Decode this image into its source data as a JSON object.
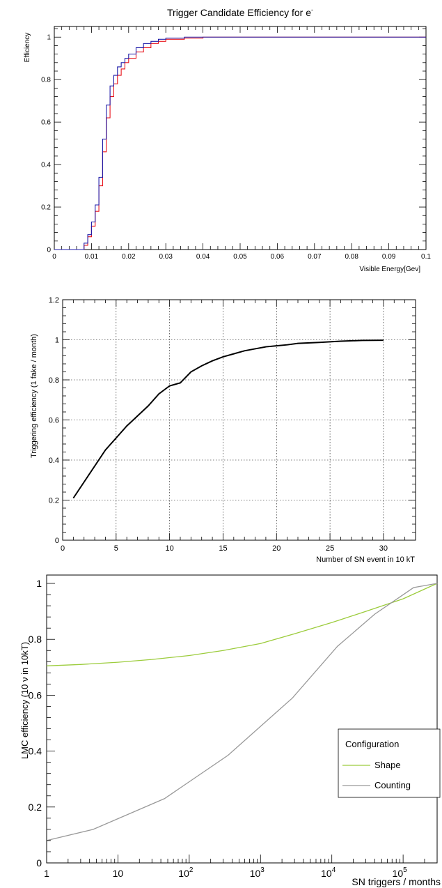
{
  "chart_data": [
    {
      "type": "line",
      "title": "Trigger Candidate Efficiency for e",
      "title_superscript": "-",
      "xlabel": "Visible Energy[Gev]",
      "ylabel": "Efficiency",
      "xlim": [
        0,
        0.1
      ],
      "ylim": [
        0,
        1.05
      ],
      "x_ticks": [
        0,
        0.01,
        0.02,
        0.03,
        0.04,
        0.05,
        0.06,
        0.07,
        0.08,
        0.09,
        0.1
      ],
      "x_tick_labels": [
        "0",
        "0.01",
        "0.02",
        "0.03",
        "0.04",
        "0.05",
        "0.06",
        "0.07",
        "0.08",
        "0.09",
        "0.1"
      ],
      "y_ticks": [
        0,
        0.2,
        0.4,
        0.6,
        0.8,
        1
      ],
      "y_tick_labels": [
        "0",
        "0.2",
        "0.4",
        "0.6",
        "0.8",
        "1"
      ],
      "grid": false,
      "step_histogram": true,
      "x": [
        0.007,
        0.008,
        0.009,
        0.01,
        0.011,
        0.012,
        0.013,
        0.014,
        0.015,
        0.016,
        0.017,
        0.018,
        0.019,
        0.02,
        0.022,
        0.024,
        0.026,
        0.028,
        0.03,
        0.035,
        0.04,
        0.05,
        0.1
      ],
      "series": [
        {
          "color": "#e8141c",
          "values": [
            0.0,
            0.02,
            0.06,
            0.11,
            0.18,
            0.3,
            0.46,
            0.62,
            0.72,
            0.78,
            0.82,
            0.85,
            0.88,
            0.9,
            0.93,
            0.95,
            0.97,
            0.98,
            0.99,
            0.995,
            1.0,
            1.0,
            1.0
          ]
        },
        {
          "color": "#1d1aa8",
          "values": [
            0.0,
            0.03,
            0.07,
            0.13,
            0.21,
            0.34,
            0.52,
            0.68,
            0.77,
            0.82,
            0.86,
            0.88,
            0.9,
            0.92,
            0.95,
            0.97,
            0.98,
            0.99,
            0.995,
            1.0,
            1.0,
            1.0,
            1.0
          ]
        }
      ]
    },
    {
      "type": "line",
      "title": "",
      "xlabel": "Number of SN event in 10 kT",
      "ylabel": "Triggering efficiency (1 fake / month)",
      "xlim": [
        0,
        33
      ],
      "ylim": [
        0,
        1.2
      ],
      "x_ticks": [
        0,
        5,
        10,
        15,
        20,
        25,
        30
      ],
      "x_tick_labels": [
        "0",
        "5",
        "10",
        "15",
        "20",
        "25",
        "30"
      ],
      "y_ticks": [
        0,
        0.2,
        0.4,
        0.6,
        0.8,
        1,
        1.2
      ],
      "y_tick_labels": [
        "0",
        "0.2",
        "0.4",
        "0.6",
        "0.8",
        "1",
        "1.2"
      ],
      "grid": true,
      "series": [
        {
          "color": "#000000",
          "x": [
            1,
            2,
            3,
            4,
            5,
            6,
            7,
            8,
            9,
            10,
            11,
            12,
            13,
            14,
            15,
            16,
            17,
            18,
            19,
            20,
            21,
            22,
            24,
            26,
            28,
            30
          ],
          "values": [
            0.21,
            0.29,
            0.37,
            0.45,
            0.51,
            0.57,
            0.62,
            0.67,
            0.73,
            0.77,
            0.785,
            0.84,
            0.87,
            0.895,
            0.915,
            0.93,
            0.945,
            0.955,
            0.965,
            0.97,
            0.975,
            0.982,
            0.987,
            0.993,
            0.997,
            0.998
          ]
        }
      ]
    },
    {
      "type": "line",
      "title": "",
      "xlabel": "SN triggers / months",
      "ylabel": "LMC efficiency (10 ν in 10kT)",
      "x_scale": "log",
      "xlim": [
        1,
        300000
      ],
      "ylim": [
        0,
        1.03
      ],
      "x_ticks": [
        1,
        10,
        100,
        1000,
        10000,
        100000
      ],
      "x_tick_labels": [
        {
          "base": "1",
          "exp": ""
        },
        {
          "base": "10",
          "exp": ""
        },
        {
          "base": "10",
          "exp": "2"
        },
        {
          "base": "10",
          "exp": "3"
        },
        {
          "base": "10",
          "exp": "4"
        },
        {
          "base": "10",
          "exp": "5"
        }
      ],
      "y_ticks": [
        0,
        0.2,
        0.4,
        0.6,
        0.8,
        1
      ],
      "y_tick_labels": [
        "0",
        "0.2",
        "0.4",
        "0.6",
        "0.8",
        "1"
      ],
      "grid": false,
      "legend": {
        "title": "Configuration",
        "position": "right",
        "entries": [
          "Shape",
          "Counting"
        ]
      },
      "series": [
        {
          "name": "Shape",
          "color": "#9ccc3c",
          "x": [
            1,
            3,
            10,
            30,
            100,
            300,
            1000,
            3000,
            10000,
            30000,
            100000,
            300000
          ],
          "values": [
            0.705,
            0.71,
            0.718,
            0.728,
            0.742,
            0.76,
            0.785,
            0.82,
            0.86,
            0.9,
            0.945,
            1.0
          ]
        },
        {
          "name": "Counting",
          "color": "#999999",
          "x": [
            1,
            4.5,
            45,
            350,
            2800,
            12000,
            40000,
            140000,
            300000
          ],
          "values": [
            0.08,
            0.12,
            0.23,
            0.385,
            0.59,
            0.775,
            0.89,
            0.985,
            1.0
          ]
        }
      ]
    }
  ]
}
